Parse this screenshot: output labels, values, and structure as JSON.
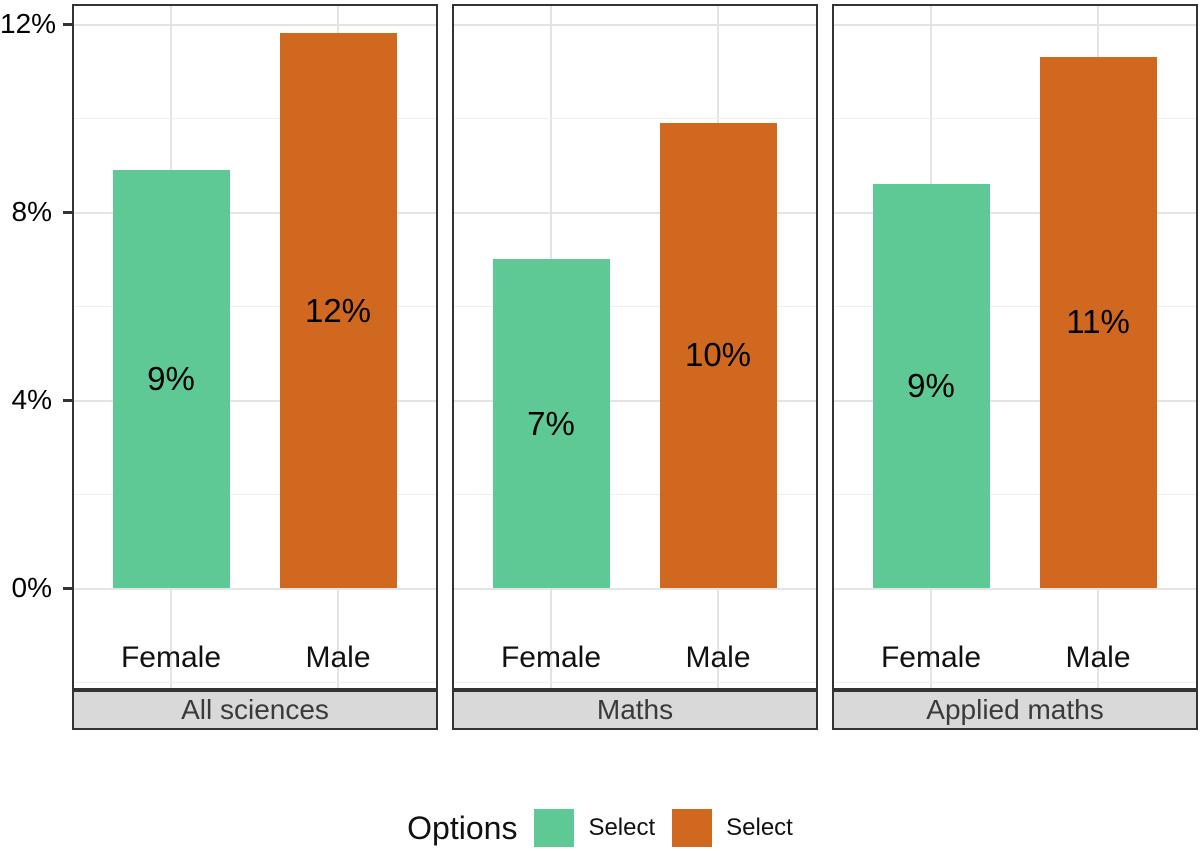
{
  "chart_data": {
    "type": "bar",
    "faceted": true,
    "categories": [
      "Female",
      "Male"
    ],
    "facets": [
      {
        "strip_label": "All sciences",
        "values": [
          8.9,
          11.8
        ],
        "bar_labels": [
          "9%",
          "12%"
        ]
      },
      {
        "strip_label": "Maths",
        "values": [
          7.0,
          9.9
        ],
        "bar_labels": [
          "7%",
          "10%"
        ]
      },
      {
        "strip_label": "Applied maths",
        "values": [
          8.6,
          11.3
        ],
        "bar_labels": [
          "9%",
          "11%"
        ]
      }
    ],
    "series_colors": {
      "Female": "#5ec994",
      "Male": "#d0691f"
    },
    "y_axis": {
      "ticks": [
        {
          "label": "0%",
          "value": 0
        },
        {
          "label": "4%",
          "value": 4
        },
        {
          "label": "8%",
          "value": 8
        },
        {
          "label": "12%",
          "value": 12
        }
      ],
      "minor_gridlines": [
        -2,
        2,
        6,
        10
      ]
    },
    "ylim": [
      -2.1,
      12.4
    ],
    "xlabel": "",
    "ylabel": "",
    "grid": true,
    "legend_position": "bottom"
  },
  "legend": {
    "title": "Options",
    "items": [
      {
        "label": "Select",
        "color": "#5ec994"
      },
      {
        "label": "Select",
        "color": "#d0691f"
      }
    ]
  },
  "colors": {
    "strip_bg": "#d9d9d9",
    "strip_text": "#3a3a3a",
    "panel_border": "#333333",
    "grid_major": "#e4e4e4",
    "grid_minor": "#efefef",
    "text": "#000000",
    "background": "#ffffff"
  }
}
